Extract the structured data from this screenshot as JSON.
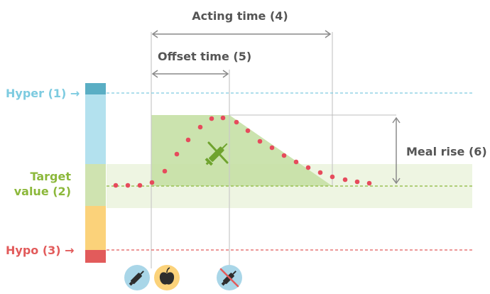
{
  "labels": {
    "acting_time": "Acting time (4)",
    "offset_time": "Offset time (5)",
    "meal_rise": "Meal rise (6)",
    "hyper": "Hyper (1) →",
    "target_line1": "Target",
    "target_line2": "value (2)",
    "hypo": "Hypo (3) →"
  },
  "colors": {
    "hyper": "#7dcbe0",
    "hyper_dark": "#5aaec4",
    "target": "#cfe3b0",
    "target_text": "#8cb83b",
    "target_band": "#eef5e2",
    "meal_area": "#c5e0a5",
    "hypo": "#fbd27a",
    "hypo_dark": "#e25b5b",
    "dots": "#e64b5c",
    "lines": "#8a8a8a",
    "text": "#555555"
  },
  "icons": [
    "insulin-pen-icon",
    "apple-icon",
    "insulin-pen-crossed-icon",
    "syringe-icon"
  ]
}
